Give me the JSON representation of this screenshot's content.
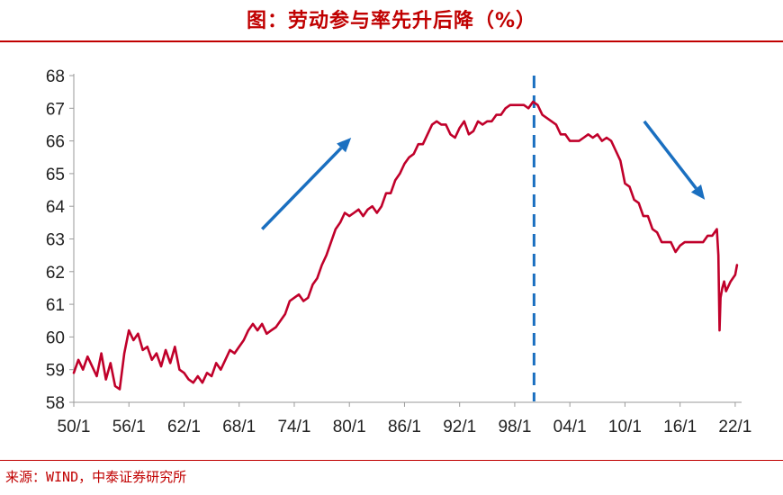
{
  "header": {
    "title": "图：劳动参与率先升后降（%）"
  },
  "footer": {
    "source": "来源：WIND，中泰证券研究所"
  },
  "colors": {
    "series": "#c0002a",
    "annotation": "#1a6fc0",
    "rule": "#c00000"
  },
  "chart_data": {
    "type": "line",
    "title": "图：劳动参与率先升后降（%）",
    "xlabel": "",
    "ylabel": "",
    "xlim": [
      1950.0,
      2022.5
    ],
    "ylim": [
      58,
      68
    ],
    "yticks": [
      58,
      59,
      60,
      61,
      62,
      63,
      64,
      65,
      66,
      67,
      68
    ],
    "xticks": [
      {
        "value": 1950,
        "label": "50/1"
      },
      {
        "value": 1956,
        "label": "56/1"
      },
      {
        "value": 1962,
        "label": "62/1"
      },
      {
        "value": 1968,
        "label": "68/1"
      },
      {
        "value": 1974,
        "label": "74/1"
      },
      {
        "value": 1980,
        "label": "80/1"
      },
      {
        "value": 1986,
        "label": "86/1"
      },
      {
        "value": 1992,
        "label": "92/1"
      },
      {
        "value": 1998,
        "label": "98/1"
      },
      {
        "value": 2004,
        "label": "04/1"
      },
      {
        "value": 2010,
        "label": "10/1"
      },
      {
        "value": 2016,
        "label": "16/1"
      },
      {
        "value": 2022,
        "label": "22/1"
      }
    ],
    "grid": false,
    "legend": "none",
    "series": [
      {
        "points": [
          [
            1950.0,
            58.9
          ],
          [
            1950.5,
            59.3
          ],
          [
            1951.0,
            59.0
          ],
          [
            1951.5,
            59.4
          ],
          [
            1952.0,
            59.1
          ],
          [
            1952.5,
            58.8
          ],
          [
            1953.0,
            59.5
          ],
          [
            1953.5,
            58.7
          ],
          [
            1954.0,
            59.2
          ],
          [
            1954.5,
            58.5
          ],
          [
            1955.0,
            58.4
          ],
          [
            1955.5,
            59.5
          ],
          [
            1956.0,
            60.2
          ],
          [
            1956.5,
            59.9
          ],
          [
            1957.0,
            60.1
          ],
          [
            1957.5,
            59.6
          ],
          [
            1958.0,
            59.7
          ],
          [
            1958.5,
            59.3
          ],
          [
            1959.0,
            59.5
          ],
          [
            1959.5,
            59.1
          ],
          [
            1960.0,
            59.6
          ],
          [
            1960.5,
            59.2
          ],
          [
            1961.0,
            59.7
          ],
          [
            1961.5,
            59.0
          ],
          [
            1962.0,
            58.9
          ],
          [
            1962.5,
            58.7
          ],
          [
            1963.0,
            58.6
          ],
          [
            1963.5,
            58.8
          ],
          [
            1964.0,
            58.6
          ],
          [
            1964.5,
            58.9
          ],
          [
            1965.0,
            58.8
          ],
          [
            1965.5,
            59.2
          ],
          [
            1966.0,
            59.0
          ],
          [
            1966.5,
            59.3
          ],
          [
            1967.0,
            59.6
          ],
          [
            1967.5,
            59.5
          ],
          [
            1968.0,
            59.7
          ],
          [
            1968.5,
            59.9
          ],
          [
            1969.0,
            60.2
          ],
          [
            1969.5,
            60.4
          ],
          [
            1970.0,
            60.2
          ],
          [
            1970.5,
            60.4
          ],
          [
            1971.0,
            60.1
          ],
          [
            1971.5,
            60.2
          ],
          [
            1972.0,
            60.3
          ],
          [
            1972.5,
            60.5
          ],
          [
            1973.0,
            60.7
          ],
          [
            1973.5,
            61.1
          ],
          [
            1974.0,
            61.2
          ],
          [
            1974.5,
            61.3
          ],
          [
            1975.0,
            61.1
          ],
          [
            1975.5,
            61.2
          ],
          [
            1976.0,
            61.6
          ],
          [
            1976.5,
            61.8
          ],
          [
            1977.0,
            62.2
          ],
          [
            1977.5,
            62.5
          ],
          [
            1978.0,
            62.9
          ],
          [
            1978.5,
            63.3
          ],
          [
            1979.0,
            63.5
          ],
          [
            1979.5,
            63.8
          ],
          [
            1980.0,
            63.7
          ],
          [
            1980.5,
            63.8
          ],
          [
            1981.0,
            63.9
          ],
          [
            1981.5,
            63.7
          ],
          [
            1982.0,
            63.9
          ],
          [
            1982.5,
            64.0
          ],
          [
            1983.0,
            63.8
          ],
          [
            1983.5,
            64.0
          ],
          [
            1984.0,
            64.4
          ],
          [
            1984.5,
            64.4
          ],
          [
            1985.0,
            64.8
          ],
          [
            1985.5,
            65.0
          ],
          [
            1986.0,
            65.3
          ],
          [
            1986.5,
            65.5
          ],
          [
            1987.0,
            65.6
          ],
          [
            1987.5,
            65.9
          ],
          [
            1988.0,
            65.9
          ],
          [
            1988.5,
            66.2
          ],
          [
            1989.0,
            66.5
          ],
          [
            1989.5,
            66.6
          ],
          [
            1990.0,
            66.5
          ],
          [
            1990.5,
            66.5
          ],
          [
            1991.0,
            66.2
          ],
          [
            1991.5,
            66.1
          ],
          [
            1992.0,
            66.4
          ],
          [
            1992.5,
            66.6
          ],
          [
            1993.0,
            66.2
          ],
          [
            1993.5,
            66.3
          ],
          [
            1994.0,
            66.6
          ],
          [
            1994.5,
            66.5
          ],
          [
            1995.0,
            66.6
          ],
          [
            1995.5,
            66.6
          ],
          [
            1996.0,
            66.8
          ],
          [
            1996.5,
            66.8
          ],
          [
            1997.0,
            67.0
          ],
          [
            1997.5,
            67.1
          ],
          [
            1998.0,
            67.1
          ],
          [
            1998.5,
            67.1
          ],
          [
            1999.0,
            67.1
          ],
          [
            1999.5,
            67.0
          ],
          [
            2000.0,
            67.2
          ],
          [
            2000.5,
            67.1
          ],
          [
            2001.0,
            66.8
          ],
          [
            2001.5,
            66.7
          ],
          [
            2002.0,
            66.6
          ],
          [
            2002.5,
            66.5
          ],
          [
            2003.0,
            66.2
          ],
          [
            2003.5,
            66.2
          ],
          [
            2004.0,
            66.0
          ],
          [
            2004.5,
            66.0
          ],
          [
            2005.0,
            66.0
          ],
          [
            2005.5,
            66.1
          ],
          [
            2006.0,
            66.2
          ],
          [
            2006.5,
            66.1
          ],
          [
            2007.0,
            66.2
          ],
          [
            2007.5,
            66.0
          ],
          [
            2008.0,
            66.1
          ],
          [
            2008.5,
            66.0
          ],
          [
            2009.0,
            65.7
          ],
          [
            2009.5,
            65.4
          ],
          [
            2010.0,
            64.7
          ],
          [
            2010.5,
            64.6
          ],
          [
            2011.0,
            64.2
          ],
          [
            2011.5,
            64.1
          ],
          [
            2012.0,
            63.7
          ],
          [
            2012.5,
            63.7
          ],
          [
            2013.0,
            63.3
          ],
          [
            2013.5,
            63.2
          ],
          [
            2014.0,
            62.9
          ],
          [
            2014.5,
            62.9
          ],
          [
            2015.0,
            62.9
          ],
          [
            2015.5,
            62.6
          ],
          [
            2016.0,
            62.8
          ],
          [
            2016.5,
            62.9
          ],
          [
            2017.0,
            62.9
          ],
          [
            2017.5,
            62.9
          ],
          [
            2018.0,
            62.9
          ],
          [
            2018.5,
            62.9
          ],
          [
            2019.0,
            63.1
          ],
          [
            2019.5,
            63.1
          ],
          [
            2020.0,
            63.3
          ],
          [
            2020.17,
            62.5
          ],
          [
            2020.3,
            60.2
          ],
          [
            2020.4,
            61.2
          ],
          [
            2020.6,
            61.5
          ],
          [
            2020.8,
            61.7
          ],
          [
            2021.0,
            61.4
          ],
          [
            2021.5,
            61.7
          ],
          [
            2022.0,
            61.9
          ],
          [
            2022.2,
            62.2
          ]
        ]
      }
    ],
    "annotations": {
      "peak_marker": {
        "style": "dashed-vertical",
        "x": 2000.1
      },
      "arrows": [
        {
          "direction": "up",
          "from": [
            1970.5,
            63.3
          ],
          "to": [
            1980.2,
            66.1
          ]
        },
        {
          "direction": "down",
          "from": [
            2012.1,
            66.6
          ],
          "to": [
            2018.7,
            64.2
          ]
        }
      ]
    }
  }
}
